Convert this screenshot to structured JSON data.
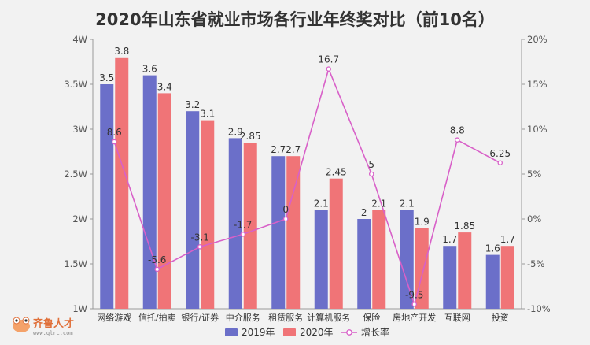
{
  "chart_data": {
    "type": "bar",
    "title": "2020年山东省就业市场各行业年终奖对比（前10名）",
    "categories": [
      "网络游戏",
      "信托/拍卖",
      "银行/证券",
      "中介服务",
      "租赁服务",
      "计算机服务",
      "保险",
      "房地产开发",
      "互联网",
      "投资"
    ],
    "series": [
      {
        "name": "2019年",
        "type": "bar",
        "axis": "left",
        "color": "#6b6fc9",
        "values": [
          3.5,
          3.6,
          3.2,
          2.9,
          2.7,
          2.1,
          2,
          2.1,
          1.7,
          1.6
        ],
        "labels": [
          "3.5",
          "3.6",
          "3.2",
          "2.9",
          "2.7",
          "2.1",
          "2",
          "2.1",
          "1.7",
          "1.6"
        ]
      },
      {
        "name": "2020年",
        "type": "bar",
        "axis": "left",
        "color": "#f07477",
        "values": [
          3.8,
          3.4,
          3.1,
          2.85,
          2.7,
          2.45,
          2.1,
          1.9,
          1.85,
          1.7
        ],
        "labels": [
          "3.8",
          "3.4",
          "3.1",
          "2.85",
          "2.7",
          "2.45",
          "2.1",
          "1.9",
          "1.85",
          "1.7"
        ]
      },
      {
        "name": "增长率",
        "type": "line",
        "axis": "right",
        "color": "#d860c8",
        "values": [
          8.6,
          -5.6,
          -3.1,
          -1.7,
          0,
          16.7,
          5,
          -9.5,
          8.8,
          6.25
        ],
        "labels": [
          "8.6",
          "-5.6",
          "-3.1",
          "-1.7",
          "0",
          "16.7",
          "5",
          "-9.5",
          "8.8",
          "6.25"
        ]
      }
    ],
    "left_axis": {
      "ylim": [
        1,
        4
      ],
      "ticks": [
        "1W",
        "1.5W",
        "2W",
        "2.5W",
        "3W",
        "3.5W",
        "4W"
      ]
    },
    "right_axis": {
      "ylim": [
        -10,
        20
      ],
      "ticks": [
        "-10%",
        "-5%",
        "0%",
        "5%",
        "10%",
        "15%",
        "20%"
      ]
    },
    "grid": false,
    "legend_position": "bottom"
  },
  "watermark": {
    "brand": "齐鲁人才",
    "url": "www.qlrc.com"
  }
}
